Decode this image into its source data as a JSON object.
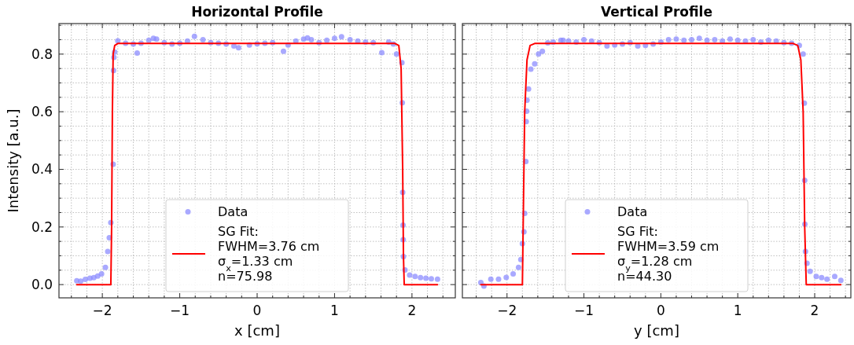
{
  "chart_data": [
    {
      "type": "scatter",
      "title": "Horizontal Profile",
      "xlabel": "x [cm]",
      "ylabel": "Intensity [a.u.]",
      "xlim": [
        -2.56,
        2.56
      ],
      "ylim": [
        -0.046,
        0.906
      ],
      "xticks": [
        {
          "value": -2.4,
          "label": null
        },
        -2,
        {
          "value": -2.2,
          "label": null
        },
        {
          "value": -1.8,
          "label": null
        },
        {
          "value": -1.6,
          "label": null
        },
        {
          "value": -1.4,
          "label": null
        },
        {
          "value": -1.2,
          "label": null
        },
        -1,
        {
          "value": -0.8,
          "label": null
        },
        {
          "value": -0.6,
          "label": null
        },
        {
          "value": -0.4,
          "label": null
        },
        {
          "value": -0.2,
          "label": null
        },
        0,
        {
          "value": 0.2,
          "label": null
        },
        {
          "value": 0.4,
          "label": null
        },
        {
          "value": 0.6,
          "label": null
        },
        {
          "value": 0.8,
          "label": null
        },
        1,
        {
          "value": 1.2,
          "label": null
        },
        {
          "value": 1.4,
          "label": null
        },
        {
          "value": 1.6,
          "label": null
        },
        {
          "value": 1.8,
          "label": null
        },
        2,
        {
          "value": 2.2,
          "label": null
        },
        {
          "value": 2.4,
          "label": null
        }
      ],
      "yticks": [
        {
          "value": 0,
          "label": "0.0"
        },
        {
          "value": 0.05,
          "label": null
        },
        {
          "value": 0.1,
          "label": null
        },
        {
          "value": 0.15,
          "label": null
        },
        0.2,
        {
          "value": 0.25,
          "label": null
        },
        {
          "value": 0.3,
          "label": null
        },
        {
          "value": 0.35,
          "label": null
        },
        0.4,
        {
          "value": 0.45,
          "label": null
        },
        {
          "value": 0.5,
          "label": null
        },
        {
          "value": 0.55,
          "label": null
        },
        0.6,
        {
          "value": 0.65,
          "label": null
        },
        {
          "value": 0.7,
          "label": null
        },
        {
          "value": 0.75,
          "label": null
        },
        0.8,
        {
          "value": 0.85,
          "label": null
        },
        {
          "value": 0.9,
          "label": null
        }
      ],
      "grid": true,
      "legend": "bottom",
      "series": [
        {
          "name": "Data",
          "marker": "circle",
          "color": "#8c8cff",
          "x": [
            -2.33,
            -2.28,
            -2.22,
            -2.16,
            -2.11,
            -2.06,
            -2.01,
            -1.96,
            -1.93,
            -1.91,
            -1.89,
            -1.86,
            -1.855,
            -1.85,
            -1.84,
            -1.8,
            -1.7,
            -1.6,
            -1.55,
            -1.5,
            -1.4,
            -1.34,
            -1.3,
            -1.2,
            -1.1,
            -1.0,
            -0.9,
            -0.81,
            -0.7,
            -0.6,
            -0.5,
            -0.4,
            -0.3,
            -0.24,
            -0.1,
            0,
            0.1,
            0.2,
            0.34,
            0.4,
            0.5,
            0.6,
            0.65,
            0.7,
            0.8,
            0.9,
            1.0,
            1.09,
            1.2,
            1.3,
            1.4,
            1.5,
            1.61,
            1.7,
            1.76,
            1.8,
            1.87,
            1.875,
            1.88,
            1.885,
            1.887,
            1.89,
            1.91,
            1.97,
            2.04,
            2.11,
            2.18,
            2.25,
            2.33
          ],
          "values": [
            0.013,
            0.012,
            0.018,
            0.022,
            0.024,
            0.03,
            0.037,
            0.06,
            0.115,
            0.163,
            0.215,
            0.418,
            0.743,
            0.789,
            0.807,
            0.846,
            0.838,
            0.835,
            0.804,
            0.838,
            0.848,
            0.855,
            0.852,
            0.84,
            0.835,
            0.838,
            0.845,
            0.862,
            0.85,
            0.84,
            0.838,
            0.835,
            0.828,
            0.822,
            0.832,
            0.836,
            0.838,
            0.84,
            0.81,
            0.832,
            0.845,
            0.852,
            0.856,
            0.85,
            0.84,
            0.848,
            0.855,
            0.86,
            0.85,
            0.845,
            0.842,
            0.84,
            0.805,
            0.842,
            0.835,
            0.8,
            0.77,
            0.631,
            0.32,
            0.206,
            0.156,
            0.097,
            0.051,
            0.033,
            0.028,
            0.024,
            0.022,
            0.02,
            0.019
          ]
        },
        {
          "name": "SG Fit:\nFWHM=3.76 cm\nσ$_{x}$=1.33 cm\nn=75.98",
          "type": "line",
          "color": "#ff0000",
          "x": [
            -2.33,
            -1.89,
            -1.88,
            -1.87,
            -1.86,
            -1.84,
            -1.8,
            1.78,
            1.83,
            1.86,
            1.88,
            1.89,
            1.9,
            2.33
          ],
          "values": [
            0,
            0,
            0.2,
            0.6,
            0.8,
            0.83,
            0.837,
            0.837,
            0.83,
            0.75,
            0.4,
            0.1,
            0,
            0
          ]
        }
      ]
    },
    {
      "type": "scatter",
      "title": "Vertical Profile",
      "xlabel": "y [cm]",
      "xlim": [
        -2.58,
        2.47
      ],
      "ylim": [
        -0.046,
        0.906
      ],
      "tick_labels": "x",
      "xticks": [
        {
          "value": -2.4,
          "label": null
        },
        -2,
        {
          "value": -2.2,
          "label": null
        },
        {
          "value": -1.8,
          "label": null
        },
        {
          "value": -1.6,
          "label": null
        },
        {
          "value": -1.4,
          "label": null
        },
        {
          "value": -1.2,
          "label": null
        },
        -1,
        {
          "value": -0.8,
          "label": null
        },
        {
          "value": -0.6,
          "label": null
        },
        {
          "value": -0.4,
          "label": null
        },
        {
          "value": -0.2,
          "label": null
        },
        0,
        {
          "value": 0.2,
          "label": null
        },
        {
          "value": 0.4,
          "label": null
        },
        {
          "value": 0.6,
          "label": null
        },
        {
          "value": 0.8,
          "label": null
        },
        1,
        {
          "value": 1.2,
          "label": null
        },
        {
          "value": 1.4,
          "label": null
        },
        {
          "value": 1.6,
          "label": null
        },
        {
          "value": 1.8,
          "label": null
        },
        2,
        {
          "value": 2.2,
          "label": null
        },
        {
          "value": 2.4,
          "label": null
        }
      ],
      "yticks": [
        0,
        {
          "value": 0.05,
          "label": null
        },
        {
          "value": 0.1,
          "label": null
        },
        {
          "value": 0.15,
          "label": null
        },
        0.2,
        {
          "value": 0.25,
          "label": null
        },
        {
          "value": 0.3,
          "label": null
        },
        {
          "value": 0.35,
          "label": null
        },
        0.4,
        {
          "value": 0.45,
          "label": null
        },
        {
          "value": 0.5,
          "label": null
        },
        {
          "value": 0.55,
          "label": null
        },
        0.6,
        {
          "value": 0.65,
          "label": null
        },
        {
          "value": 0.7,
          "label": null
        },
        {
          "value": 0.75,
          "label": null
        },
        0.8,
        {
          "value": 0.85,
          "label": null
        },
        {
          "value": 0.9,
          "label": null
        }
      ],
      "grid": true,
      "legend": "bottom",
      "series": [
        {
          "name": "Data",
          "marker": "circle",
          "color": "#8c8cff",
          "x": [
            -2.34,
            -2.3,
            -2.21,
            -2.11,
            -2.01,
            -1.92,
            -1.85,
            -1.82,
            -1.8,
            -1.78,
            -1.77,
            -1.755,
            -1.75,
            -1.745,
            -1.74,
            -1.72,
            -1.69,
            -1.64,
            -1.59,
            -1.54,
            -1.47,
            -1.4,
            -1.3,
            -1.27,
            -1.2,
            -1.1,
            -1.0,
            -0.9,
            -0.8,
            -0.7,
            -0.6,
            -0.5,
            -0.4,
            -0.3,
            -0.2,
            -0.1,
            0,
            0.1,
            0.2,
            0.3,
            0.4,
            0.5,
            0.6,
            0.7,
            0.8,
            0.9,
            1.0,
            1.1,
            1.2,
            1.3,
            1.4,
            1.5,
            1.6,
            1.7,
            1.8,
            1.85,
            1.865,
            1.87,
            1.872,
            1.88,
            1.9,
            1.94,
            2.02,
            2.09,
            2.16,
            2.26,
            2.34
          ],
          "values": [
            0.007,
            -0.005,
            0.019,
            0.019,
            0.025,
            0.037,
            0.06,
            0.087,
            0.142,
            0.183,
            0.247,
            0.427,
            0.566,
            0.602,
            0.64,
            0.679,
            0.748,
            0.766,
            0.8,
            0.81,
            0.839,
            0.842,
            0.848,
            0.848,
            0.845,
            0.842,
            0.85,
            0.845,
            0.84,
            0.828,
            0.832,
            0.835,
            0.84,
            0.828,
            0.83,
            0.835,
            0.842,
            0.85,
            0.852,
            0.848,
            0.85,
            0.855,
            0.848,
            0.85,
            0.845,
            0.852,
            0.848,
            0.845,
            0.85,
            0.842,
            0.848,
            0.845,
            0.84,
            0.838,
            0.83,
            0.8,
            0.63,
            0.362,
            0.21,
            0.115,
            0.074,
            0.046,
            0.028,
            0.024,
            0.019,
            0.028,
            0.015
          ]
        },
        {
          "name": "SG Fit:\nFWHM=3.59 cm\nσ$_{y}$=1.28 cm\nn=44.30",
          "type": "line",
          "color": "#ff0000",
          "x": [
            -2.34,
            -1.8,
            -1.79,
            -1.77,
            -1.74,
            -1.7,
            -1.64,
            1.72,
            1.78,
            1.82,
            1.85,
            1.87,
            1.89,
            2.34
          ],
          "values": [
            0,
            0,
            0.2,
            0.6,
            0.78,
            0.83,
            0.837,
            0.837,
            0.83,
            0.78,
            0.6,
            0.2,
            0,
            0
          ]
        }
      ]
    }
  ]
}
